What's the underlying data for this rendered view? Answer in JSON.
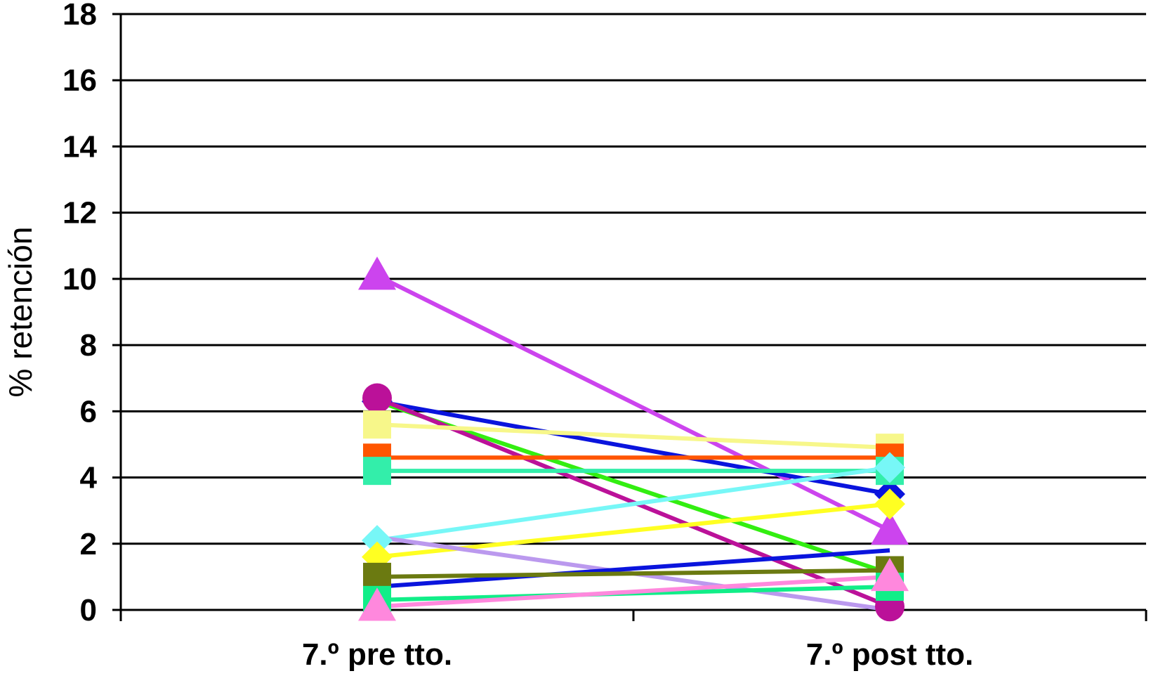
{
  "chart_data": {
    "type": "line",
    "title": "",
    "xlabel": "",
    "ylabel": "% retención",
    "categories": [
      "7.º pre tto.",
      "7.º post tto."
    ],
    "ylim": [
      0,
      18
    ],
    "yticks": [
      0,
      2,
      4,
      6,
      8,
      10,
      12,
      14,
      16,
      18
    ],
    "grid": true,
    "legend": "none",
    "series": [
      {
        "values": [
          10.1,
          2.4
        ],
        "color": "#cc44ee",
        "marker": "triangle"
      },
      {
        "values": [
          6.3,
          3.5
        ],
        "color": "#0a14dd",
        "marker": "diamond"
      },
      {
        "values": [
          6.3,
          1.1
        ],
        "color": "#33ee11",
        "marker": "none"
      },
      {
        "values": [
          6.4,
          0.1
        ],
        "color": "#bb1199",
        "marker": "circle"
      },
      {
        "values": [
          5.6,
          4.9
        ],
        "color": "#f7f78a",
        "marker": "square"
      },
      {
        "values": [
          4.6,
          4.6
        ],
        "color": "#ff5500",
        "marker": "square"
      },
      {
        "values": [
          4.2,
          4.2
        ],
        "color": "#33eeaa",
        "marker": "square"
      },
      {
        "values": [
          2.1,
          4.3
        ],
        "color": "#77f7f7",
        "marker": "diamond"
      },
      {
        "values": [
          1.6,
          3.2
        ],
        "color": "#ffff22",
        "marker": "diamond"
      },
      {
        "values": [
          2.2,
          0.0
        ],
        "color": "#bb99ee",
        "marker": "none"
      },
      {
        "values": [
          0.7,
          1.8
        ],
        "color": "#0a14dd",
        "marker": "none"
      },
      {
        "values": [
          1.0,
          1.2
        ],
        "color": "#6b7a11",
        "marker": "square"
      },
      {
        "values": [
          0.3,
          0.7
        ],
        "color": "#11ee88",
        "marker": "square"
      },
      {
        "values": [
          0.1,
          1.0
        ],
        "color": "#ff88dd",
        "marker": "triangle"
      }
    ]
  }
}
